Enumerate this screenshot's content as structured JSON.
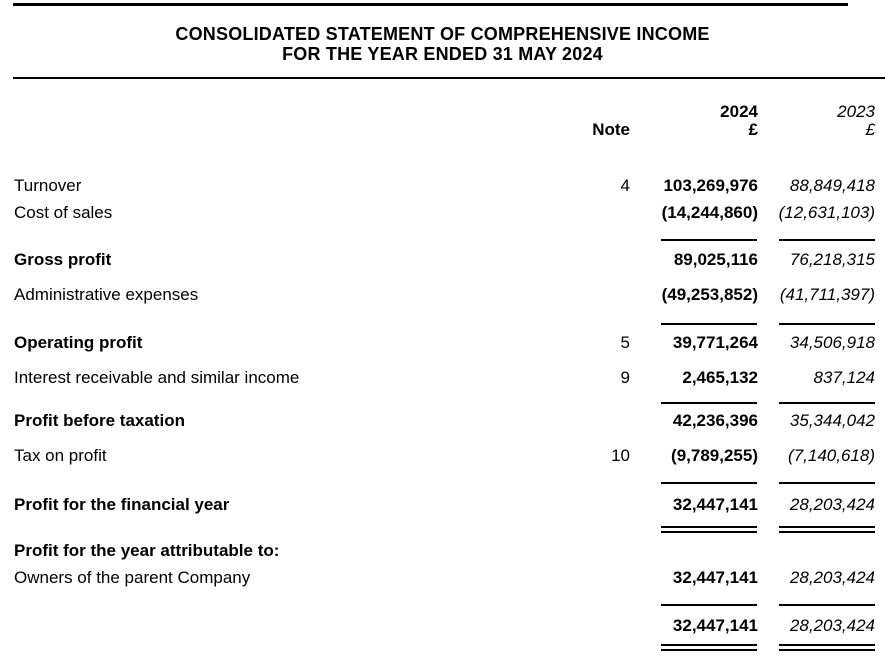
{
  "document": {
    "title_line1": "CONSOLIDATED STATEMENT OF COMPREHENSIVE INCOME",
    "title_line2": "FOR THE YEAR ENDED 31 MAY 2024",
    "header": {
      "note_label": "Note",
      "year_current": "2024",
      "year_prior": "2023",
      "currency_current": "£",
      "currency_prior": "£"
    },
    "rows": [
      {
        "label": "Turnover",
        "note": "4",
        "current": "103,269,976",
        "prior": "88,849,418",
        "bold_label": false
      },
      {
        "label": "Cost of sales",
        "note": "",
        "current": "(14,244,860)",
        "prior": "(12,631,103)",
        "bold_label": false
      },
      {
        "label": "Gross profit",
        "note": "",
        "current": "89,025,116",
        "prior": "76,218,315",
        "bold_label": true,
        "rule_above": true
      },
      {
        "label": "Administrative expenses",
        "note": "",
        "current": "(49,253,852)",
        "prior": "(41,711,397)",
        "bold_label": false
      },
      {
        "label": "Operating profit",
        "note": "5",
        "current": "39,771,264",
        "prior": "34,506,918",
        "bold_label": true,
        "rule_above": true
      },
      {
        "label": "Interest receivable and similar income",
        "note": "9",
        "current": "2,465,132",
        "prior": "837,124",
        "bold_label": false
      },
      {
        "label": "Profit before taxation",
        "note": "",
        "current": "42,236,396",
        "prior": "35,344,042",
        "bold_label": true,
        "rule_above": true
      },
      {
        "label": "Tax on profit",
        "note": "10",
        "current": "(9,789,255)",
        "prior": "(7,140,618)",
        "bold_label": false
      },
      {
        "label": "Profit for the financial year",
        "note": "",
        "current": "32,447,141",
        "prior": "28,203,424",
        "bold_label": true,
        "rule_above": true,
        "rule_below": "double"
      },
      {
        "label": "Profit for the year attributable to:",
        "note": "",
        "current": "",
        "prior": "",
        "bold_label": true
      },
      {
        "label": "Owners of the parent Company",
        "note": "",
        "current": "32,447,141",
        "prior": "28,203,424",
        "bold_label": false
      },
      {
        "label": "",
        "note": "",
        "current": "32,447,141",
        "prior": "28,203,424",
        "bold_label": false,
        "rule_above": true,
        "rule_below": "double"
      }
    ]
  }
}
